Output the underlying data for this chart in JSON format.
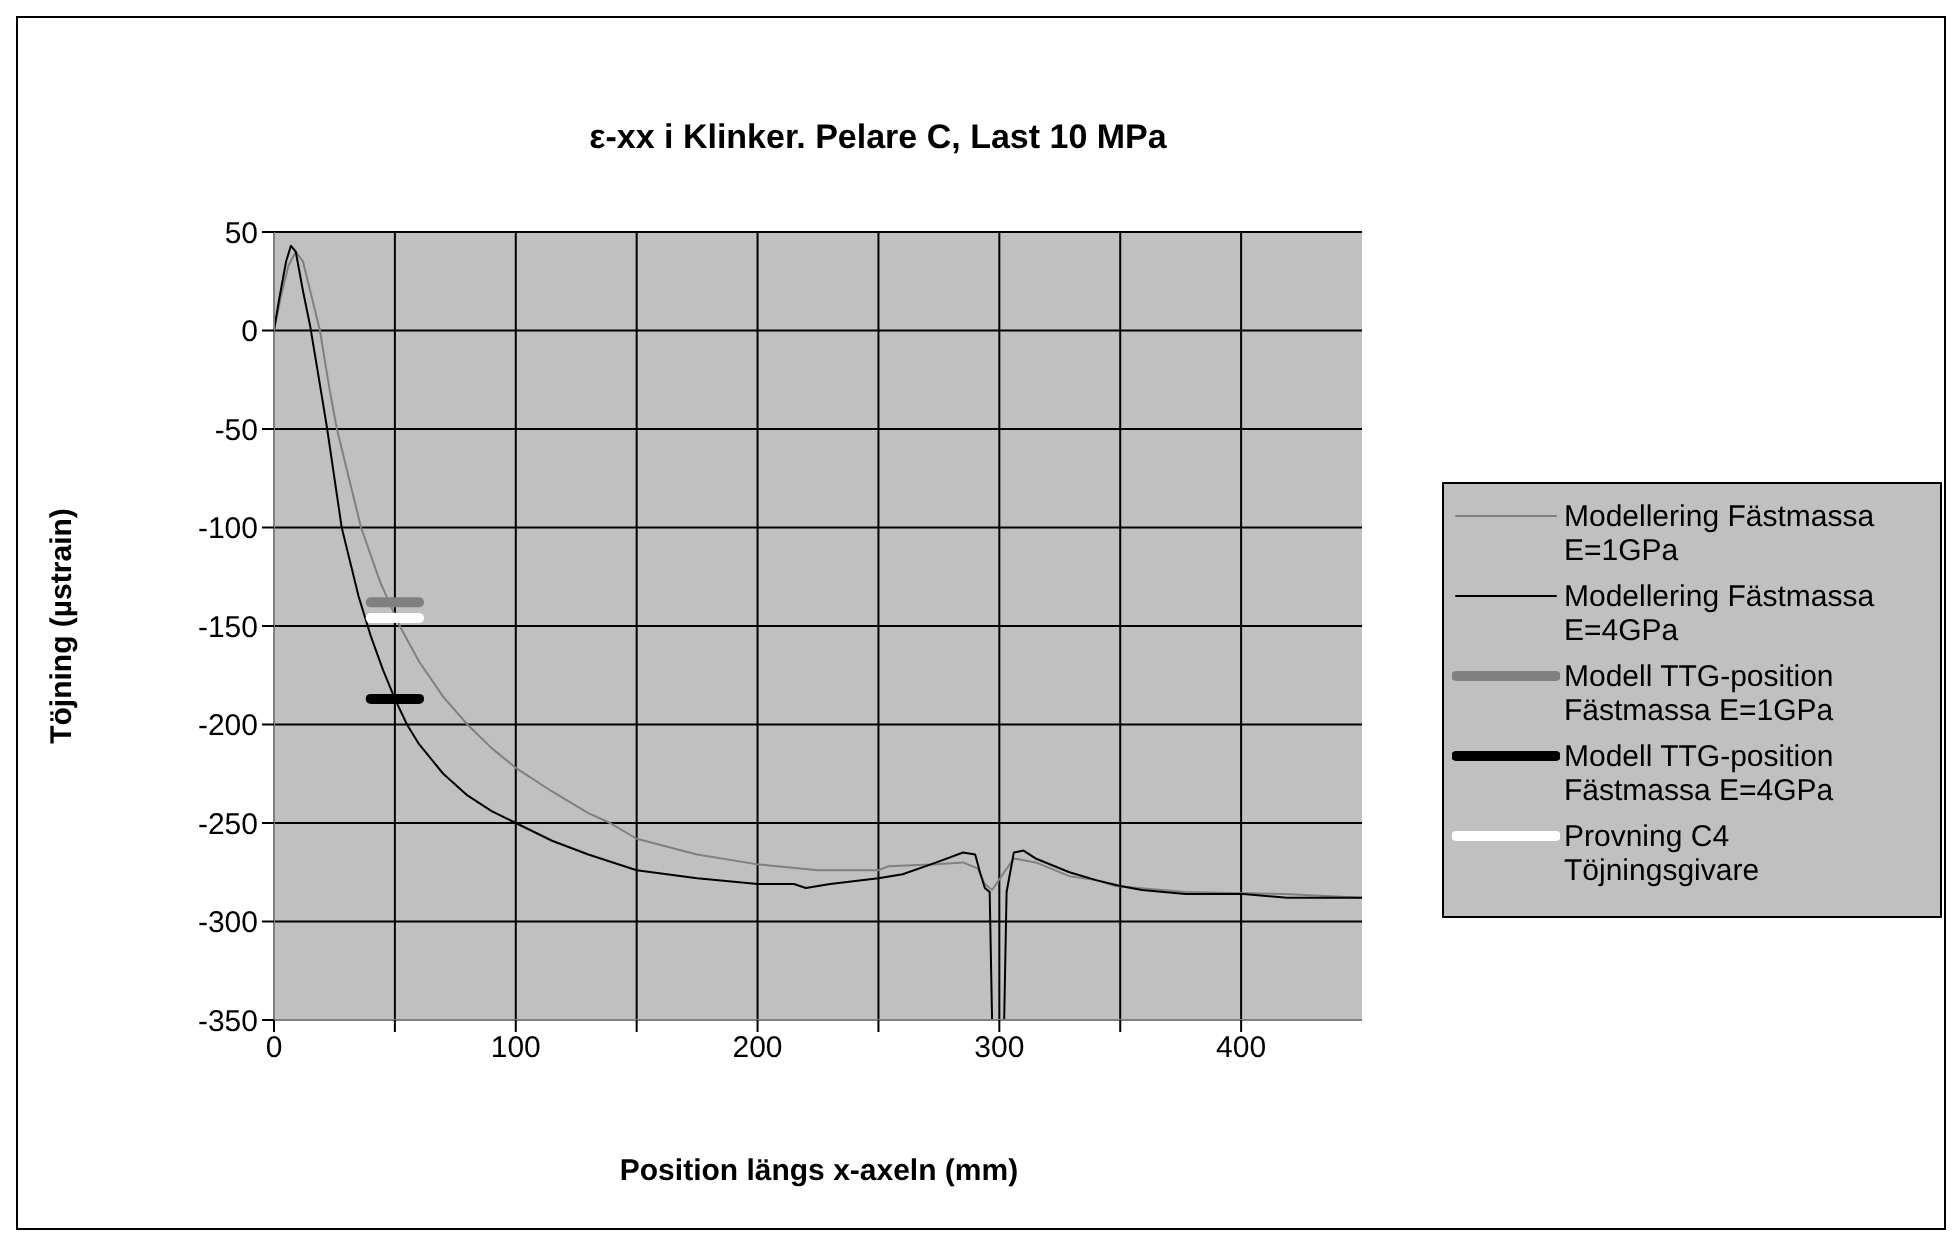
{
  "chart_data": {
    "type": "line",
    "title": "ε-xx i Klinker. Pelare C, Last 10 MPa",
    "xlabel": "Position längs x-axeln (mm)",
    "ylabel": "Töjning (µstrain)",
    "xlim": [
      0,
      450
    ],
    "xticks": [
      0,
      {
        "value": 50,
        "label": null
      },
      100,
      {
        "value": 150,
        "label": null
      },
      200,
      {
        "value": 250,
        "label": null
      },
      300,
      {
        "value": 350,
        "label": null
      },
      400
    ],
    "ylim": [
      -350,
      50
    ],
    "yticks": [
      -350,
      -300,
      -250,
      -200,
      -150,
      -100,
      -50,
      0,
      50
    ],
    "grid": true,
    "legend": "right",
    "marker": "none",
    "line_style": "solid",
    "series": [
      {
        "name": "Modellering Fästmassa E=1GPa",
        "color": "#808080",
        "x": [
          0,
          3,
          6,
          9,
          12,
          16,
          19,
          23,
          26,
          30,
          36,
          44,
          52,
          60,
          70,
          80,
          90,
          100,
          115,
          130,
          139,
          150,
          175,
          200,
          225,
          250,
          254,
          274,
          285,
          291,
          294,
          297,
          302,
          306,
          315,
          329,
          340,
          348,
          377,
          418,
          450
        ],
        "values": [
          0,
          18,
          33,
          40,
          35,
          15,
          0,
          -30,
          -50,
          -70,
          -100,
          -128,
          -150,
          -168,
          -186,
          -200,
          -212,
          -222,
          -234,
          -245,
          -250,
          -258,
          -266,
          -271,
          -274,
          -274,
          -272,
          -271,
          -270,
          -273,
          -281,
          -284,
          -275,
          -268,
          -270,
          -277,
          -279,
          -282,
          -285,
          -286,
          -288
        ]
      },
      {
        "name": "Modellering Fästmassa E=4GPa",
        "color": "#000000",
        "x": [
          0,
          2,
          5,
          7,
          9,
          12,
          15,
          20,
          22,
          25,
          28,
          30,
          35,
          40,
          45,
          50,
          55,
          60,
          70,
          80,
          90,
          100,
          115,
          130,
          150,
          175,
          200,
          215,
          220,
          230,
          250,
          260,
          274,
          285,
          290,
          292,
          294,
          296,
          297,
          302,
          303,
          306,
          310,
          315,
          329,
          340,
          350,
          359,
          377,
          401,
          419,
          450
        ],
        "values": [
          0,
          15,
          35,
          43,
          40,
          20,
          2,
          -35,
          -50,
          -75,
          -100,
          -110,
          -135,
          -155,
          -172,
          -187,
          -200,
          -210,
          -225,
          -236,
          -244,
          -250,
          -259,
          -266,
          -274,
          -278,
          -281,
          -281,
          -283,
          -281,
          -278,
          -276,
          -270,
          -265,
          -266,
          -275,
          -283,
          -285,
          -350,
          -350,
          -285,
          -265,
          -264,
          -268,
          -275,
          -279,
          -282,
          -284,
          -286,
          -286,
          -288,
          -288
        ]
      },
      {
        "name": "Modell TTG-position Fästmassa E=1GPa",
        "color": "#808080",
        "x": [
          40,
          60
        ],
        "values": [
          -138,
          -138
        ]
      },
      {
        "name": "Modell TTG-position Fästmassa E=4GPa",
        "color": "#000000",
        "x": [
          40,
          60
        ],
        "values": [
          -187,
          -187
        ]
      },
      {
        "name": "Provning C4 Töjningsgivare",
        "color": "#ffffff",
        "x": [
          40,
          60
        ],
        "values": [
          -146,
          -146
        ]
      }
    ]
  }
}
